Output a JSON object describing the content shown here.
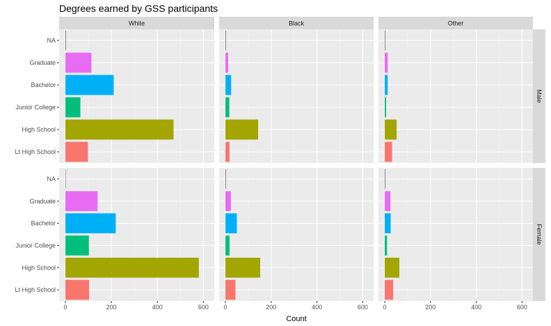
{
  "chart_data": {
    "type": "bar",
    "orientation": "horizontal",
    "title": "Degrees earned by GSS participants",
    "xlabel": "Count",
    "ylabel": "",
    "xlim": [
      0,
      620
    ],
    "x_ticks": [
      0,
      200,
      400,
      600
    ],
    "categories": [
      "Lt High School",
      "High School",
      "Junior College",
      "Bachelor",
      "Graduate",
      "NA"
    ],
    "category_colors": {
      "Lt High School": "#F8766D",
      "High School": "#A3A500",
      "Junior College": "#00BF7D",
      "Bachelor": "#00B0F6",
      "Graduate": "#E76BF3",
      "NA": "#808080"
    },
    "facet_cols": [
      "White",
      "Black",
      "Other"
    ],
    "facet_rows": [
      "Male",
      "Female"
    ],
    "grid": true,
    "legend": "none",
    "panels": [
      {
        "row": "Male",
        "col": "White",
        "values": [
          98,
          470,
          65,
          210,
          113,
          0
        ]
      },
      {
        "row": "Male",
        "col": "Black",
        "values": [
          18,
          143,
          17,
          25,
          12,
          0
        ]
      },
      {
        "row": "Male",
        "col": "Other",
        "values": [
          32,
          52,
          6,
          13,
          13,
          0
        ]
      },
      {
        "row": "Female",
        "col": "White",
        "values": [
          103,
          580,
          102,
          219,
          140,
          2
        ]
      },
      {
        "row": "Female",
        "col": "Black",
        "values": [
          44,
          152,
          18,
          50,
          24,
          0
        ]
      },
      {
        "row": "Female",
        "col": "Other",
        "values": [
          37,
          64,
          10,
          26,
          25,
          0
        ]
      }
    ]
  }
}
